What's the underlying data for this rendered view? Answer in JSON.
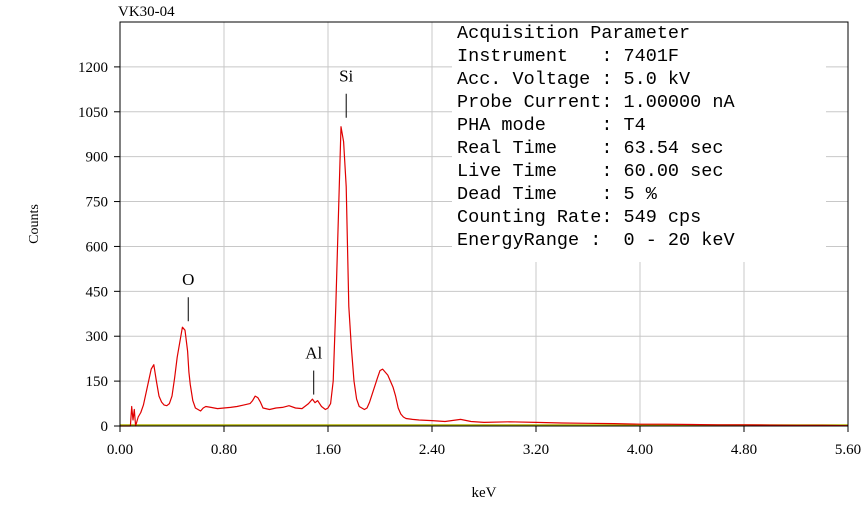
{
  "chart_data": {
    "type": "line",
    "title": "VK30-04",
    "xlabel": "keV",
    "ylabel": "Counts",
    "xlim": [
      0,
      5.6
    ],
    "ylim": [
      0,
      1350
    ],
    "xticks": [
      0,
      0.8,
      1.6,
      2.4,
      3.2,
      4.0,
      4.8,
      5.6
    ],
    "xtick_labels": [
      "0.00",
      "0.80",
      "1.60",
      "2.40",
      "3.20",
      "4.00",
      "4.80",
      "5.60"
    ],
    "yticks": [
      0,
      150,
      300,
      450,
      600,
      750,
      900,
      1050,
      1200
    ],
    "ytick_labels": [
      "0",
      "150",
      "300",
      "450",
      "600",
      "750",
      "900",
      "1050",
      "1200"
    ],
    "grid": true,
    "series": [
      {
        "color": "#e00000",
        "x": [
          0.0,
          0.08,
          0.09,
          0.1,
          0.11,
          0.12,
          0.14,
          0.16,
          0.18,
          0.2,
          0.22,
          0.24,
          0.26,
          0.28,
          0.3,
          0.32,
          0.34,
          0.36,
          0.38,
          0.4,
          0.42,
          0.44,
          0.46,
          0.48,
          0.5,
          0.52,
          0.53,
          0.54,
          0.56,
          0.58,
          0.6,
          0.62,
          0.64,
          0.66,
          0.7,
          0.75,
          0.8,
          0.85,
          0.9,
          0.95,
          1.0,
          1.02,
          1.04,
          1.06,
          1.08,
          1.1,
          1.15,
          1.2,
          1.25,
          1.3,
          1.35,
          1.4,
          1.45,
          1.48,
          1.5,
          1.52,
          1.55,
          1.58,
          1.6,
          1.62,
          1.64,
          1.66,
          1.68,
          1.7,
          1.72,
          1.74,
          1.75,
          1.76,
          1.78,
          1.8,
          1.82,
          1.84,
          1.86,
          1.88,
          1.9,
          1.92,
          1.95,
          1.98,
          2.0,
          2.02,
          2.04,
          2.06,
          2.08,
          2.1,
          2.12,
          2.14,
          2.16,
          2.18,
          2.2,
          2.25,
          2.3,
          2.4,
          2.5,
          2.62,
          2.7,
          2.8,
          3.0,
          3.2,
          3.4,
          3.6,
          3.8,
          4.0,
          4.2,
          4.4,
          4.6,
          4.8,
          5.0,
          5.2,
          5.4,
          5.6
        ],
        "y": [
          0,
          0,
          65,
          20,
          55,
          0,
          30,
          45,
          70,
          110,
          150,
          190,
          205,
          150,
          100,
          80,
          70,
          68,
          75,
          100,
          160,
          230,
          280,
          330,
          320,
          250,
          180,
          140,
          85,
          60,
          55,
          50,
          60,
          65,
          62,
          58,
          60,
          62,
          65,
          70,
          75,
          85,
          100,
          95,
          80,
          60,
          55,
          60,
          62,
          68,
          60,
          58,
          75,
          90,
          78,
          85,
          65,
          55,
          60,
          75,
          150,
          400,
          700,
          1000,
          950,
          800,
          600,
          400,
          260,
          150,
          90,
          65,
          60,
          55,
          60,
          80,
          120,
          160,
          185,
          190,
          180,
          170,
          150,
          130,
          100,
          60,
          40,
          30,
          25,
          22,
          20,
          18,
          15,
          22,
          15,
          12,
          14,
          12,
          10,
          9,
          8,
          6,
          6,
          5,
          4,
          4,
          3,
          2,
          2,
          1
        ]
      }
    ],
    "annotations": [
      {
        "label": "O",
        "x": 0.525,
        "y": 330
      },
      {
        "label": "Al",
        "x": 1.49,
        "y": 85
      },
      {
        "label": "Si",
        "x": 1.74,
        "y": 1010
      }
    ],
    "parameters_box": {
      "lines": [
        "Acquisition Parameter",
        "Instrument   : 7401F",
        "Acc. Voltage : 5.0 kV",
        "Probe Current: 1.00000 nA",
        "PHA mode     : T4",
        "Real Time    : 63.54 sec",
        "Live Time    : 60.00 sec",
        "Dead Time    : 5 %",
        "Counting Rate: 549 cps",
        "EnergyRange :  0 - 20 keV"
      ]
    },
    "baseline_color": "#b0b000",
    "grid_color": "#c8c8c8"
  }
}
